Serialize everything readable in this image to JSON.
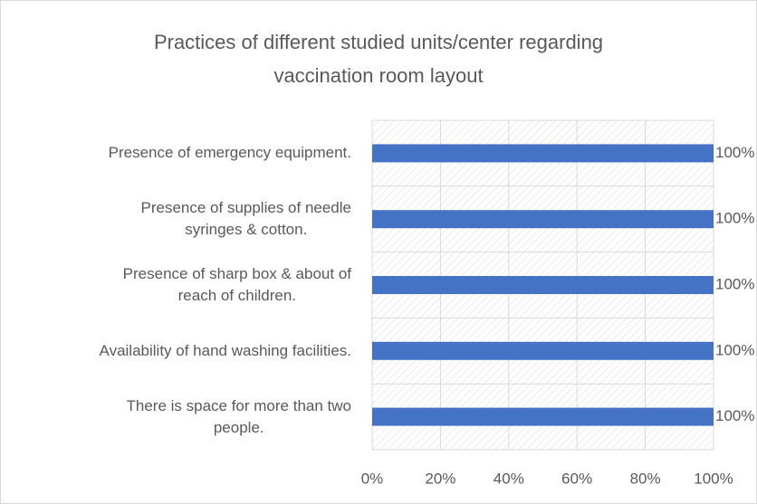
{
  "chart_data": {
    "type": "bar",
    "orientation": "horizontal",
    "title": "Practices of different studied units/center regarding\nvaccination room layout",
    "categories": [
      "Presence of emergency equipment.",
      "Presence of supplies of needle\nsyringes & cotton.",
      "Presence of sharp box & about of\nreach of children.",
      "Availability of hand washing facilities.",
      "There is space for more than two\npeople."
    ],
    "values": [
      100,
      100,
      100,
      100,
      100
    ],
    "value_labels": [
      "100%",
      "100%",
      "100%",
      "100%",
      "100%"
    ],
    "color": "#4472c4",
    "xlim": [
      0,
      100
    ],
    "xticks": [
      {
        "value": 0,
        "label": "0%"
      },
      {
        "value": 20,
        "label": "20%"
      },
      {
        "value": 40,
        "label": "40%"
      },
      {
        "value": 60,
        "label": "60%"
      },
      {
        "value": 80,
        "label": "80%"
      },
      {
        "value": 100,
        "label": "100%"
      }
    ],
    "grid": true
  }
}
